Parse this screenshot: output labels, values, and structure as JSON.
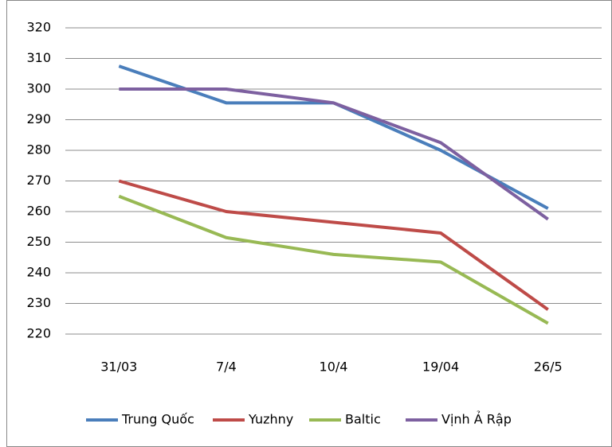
{
  "chart_data": {
    "type": "line",
    "categories": [
      "31/03",
      "7/4",
      "10/4",
      "19/04",
      "26/5"
    ],
    "series": [
      {
        "name": "Trung Quốc",
        "color": "#4a7ebb",
        "values": [
          307.5,
          295.5,
          295.5,
          280,
          261
        ]
      },
      {
        "name": "Yuzhny",
        "color": "#be4b48",
        "values": [
          270,
          260,
          256.5,
          253,
          228
        ]
      },
      {
        "name": "Baltic",
        "color": "#98b954",
        "values": [
          265,
          251.5,
          246,
          243.5,
          223.5
        ]
      },
      {
        "name": "Vịnh Ả Rập",
        "color": "#7d60a0",
        "values": [
          300,
          300,
          295.5,
          282.5,
          257.5
        ]
      }
    ],
    "ylim": [
      220,
      320
    ],
    "yticks": [
      220,
      230,
      240,
      250,
      260,
      270,
      280,
      290,
      300,
      310,
      320
    ],
    "grid": true,
    "legend": "bottom"
  }
}
